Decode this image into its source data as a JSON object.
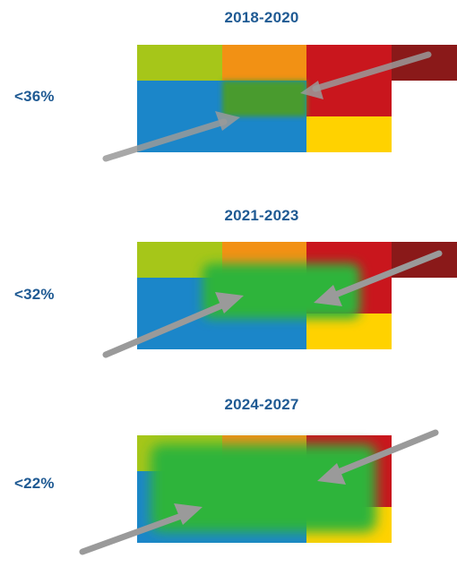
{
  "panels": [
    {
      "title": "2018-2020",
      "label": "<36%",
      "green_spread": "small"
    },
    {
      "title": "2021-2023",
      "label": "<32%",
      "green_spread": "medium"
    },
    {
      "title": "2024-2027",
      "label": "<22%",
      "green_spread": "large"
    }
  ],
  "colors": {
    "title_text": "#1f5a93",
    "lime": "#a6c619",
    "orange": "#f29114",
    "red": "#c9161d",
    "dark_red": "#8a1919",
    "blue": "#1b86c9",
    "yellow": "#ffd200",
    "green_dark": "#4a9b2d",
    "green_bright": "#2db43a",
    "arrow_gray": "#9a9a9a"
  }
}
